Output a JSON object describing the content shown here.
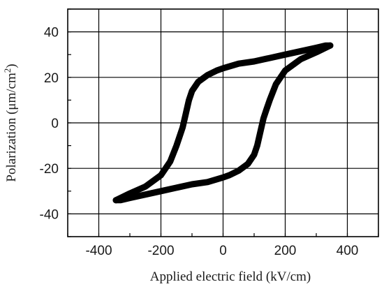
{
  "chart_data": {
    "type": "line",
    "title": "",
    "xlabel": "Applied electric field (kV/cm)",
    "ylabel_parts": {
      "prefix": "Polarization (μm/cm",
      "sup": "2",
      "suffix": ")"
    },
    "xlim": [
      -500,
      500
    ],
    "ylim": [
      -50,
      50
    ],
    "x_ticks": [
      -400,
      -200,
      0,
      200,
      400
    ],
    "y_ticks": [
      -40,
      -20,
      0,
      20,
      40
    ],
    "grid": true,
    "legend": "none",
    "line_color": "#000000",
    "series": [
      {
        "x": [
          -345,
          -330,
          -300,
          -250,
          -200,
          -170,
          -150,
          -140,
          -130,
          -120,
          -110,
          -100,
          -80,
          -50,
          -20,
          0,
          50,
          100,
          150,
          200,
          250,
          300,
          330,
          345
        ],
        "y": [
          -34,
          -33,
          -31,
          -28,
          -23,
          -17,
          -10,
          -6,
          -2,
          4,
          10,
          14,
          18,
          21,
          23,
          24,
          26,
          27,
          28.5,
          30,
          31.5,
          33,
          34,
          34
        ]
      },
      {
        "x": [
          345,
          330,
          300,
          250,
          200,
          170,
          150,
          140,
          130,
          120,
          110,
          100,
          80,
          50,
          20,
          0,
          -50,
          -100,
          -150,
          -200,
          -250,
          -300,
          -330,
          -345
        ],
        "y": [
          34,
          33,
          31,
          28,
          23,
          17,
          10,
          6,
          2,
          -4,
          -10,
          -14,
          -18,
          -21,
          -23,
          -24,
          -26,
          -27,
          -28.5,
          -30,
          -31.5,
          -33,
          -34,
          -34
        ]
      }
    ]
  }
}
